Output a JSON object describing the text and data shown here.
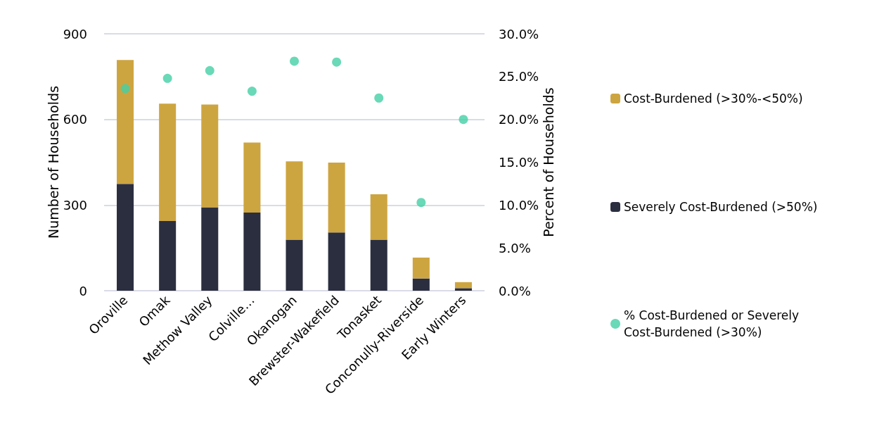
{
  "chart_data": {
    "type": "bar",
    "stacked": true,
    "ylabel": "Number of Households",
    "y2label": "Percent of Households",
    "categories": [
      "Oroville",
      "Omak",
      "Methow Valley",
      "Colville…",
      "Okanogan",
      "Brewster-Wakefield",
      "Tonasket",
      "Conconully-Riverside",
      "Early Winters"
    ],
    "series": [
      {
        "name": "Severely Cost-Burdened (>50%)",
        "color": "#2b2e3f",
        "values": [
          374,
          244,
          292,
          274,
          179,
          204,
          179,
          43,
          9
        ]
      },
      {
        "name": "Cost-Burdened (>30%-<50%)",
        "color": "#cda540",
        "values": [
          434,
          411,
          360,
          245,
          274,
          245,
          159,
          73,
          21
        ]
      },
      {
        "name": "% Cost-Burdened or Severely Cost-Burdened (>30%)",
        "type": "scatter",
        "axis": "y2",
        "marker": "circle",
        "color": "#44cfa5",
        "values": [
          23.6,
          24.8,
          25.7,
          23.3,
          26.8,
          26.7,
          22.5,
          10.3,
          20.0
        ]
      }
    ],
    "ylim": [
      0,
      900
    ],
    "yticks": [
      0,
      300,
      600,
      900
    ],
    "y2lim": [
      0,
      30
    ],
    "y2ticks": [
      {
        "value": 0,
        "label": "0.0%"
      },
      {
        "value": 5,
        "label": "5.0%"
      },
      {
        "value": 10,
        "label": "10.0%"
      },
      {
        "value": 15,
        "label": "15.0%"
      },
      {
        "value": 20,
        "label": "20.0%"
      },
      {
        "value": 25,
        "label": "25.0%"
      },
      {
        "value": 30,
        "label": "30.0%"
      }
    ],
    "grid": "y",
    "legend": "right"
  }
}
